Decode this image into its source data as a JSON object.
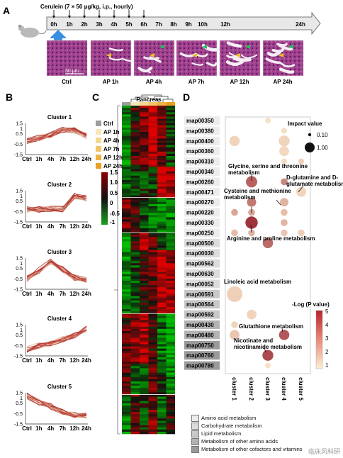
{
  "panels": {
    "a": "A",
    "b": "B",
    "c": "C",
    "d": "D"
  },
  "panel_a": {
    "treatment": "Cerulein (7 × 50 μg/kg, i.p., hourly)",
    "timepoints": [
      "0h",
      "1h",
      "2h",
      "3h",
      "4h",
      "5h",
      "6h",
      "7h",
      "8h",
      "9h",
      "10h",
      "12h",
      "24h"
    ],
    "image_labels": [
      "Ctrl",
      "AP 1h",
      "AP 4h",
      "AP 7h",
      "AP 12h",
      "AP 24h"
    ],
    "scale_bar": "50 μm"
  },
  "panel_b": {
    "x_ticks": [
      "Ctrl",
      "1h",
      "4h",
      "7h",
      "12h",
      "24h"
    ],
    "y_ticks": [
      "1.5",
      "1",
      "0.5",
      "-0.5",
      "-1.5"
    ],
    "clusters": [
      {
        "title": "Cluster 1",
        "profile": [
          -0.2,
          0.1,
          0.4,
          0.9,
          0.8,
          0.3
        ]
      },
      {
        "title": "Cluster 2",
        "profile": [
          -0.3,
          -0.3,
          -0.2,
          -0.3,
          1.0,
          0.8
        ]
      },
      {
        "title": "Cluster 3",
        "profile": [
          -0.5,
          0.3,
          1.2,
          0.4,
          -0.4,
          -0.6
        ]
      },
      {
        "title": "Cluster 4",
        "profile": [
          -0.9,
          -0.5,
          -0.3,
          0.1,
          0.5,
          1.1
        ]
      },
      {
        "title": "Cluster 5",
        "profile": [
          1.2,
          0.6,
          0.2,
          -0.3,
          -0.6,
          -0.7
        ]
      }
    ]
  },
  "panel_c": {
    "title": "Pancreas",
    "legend_groups": [
      "Ctrl",
      "AP 1h",
      "AP 4h",
      "AP 7h",
      "AP 12h",
      "AP 24h"
    ],
    "group_colors": [
      "#9e9e9e",
      "#f8e7b8",
      "#f5d890",
      "#f2c668",
      "#efb444",
      "#eda020"
    ],
    "scale_ticks": [
      "1.5",
      "1.0",
      "0.5",
      "0",
      "-0.5",
      "-1"
    ]
  },
  "panel_d": {
    "y_labels": [
      "map00350",
      "map00380",
      "map00400",
      "map00360",
      "map00310",
      "map00340",
      "map00260",
      "map00471",
      "map00270",
      "map00220",
      "map00330",
      "map00250",
      "map00500",
      "map00030",
      "map00562",
      "map00630",
      "map00052",
      "map00591",
      "map00564",
      "map00592",
      "map00430",
      "map00480",
      "map00750",
      "map00760",
      "map00780"
    ],
    "x_labels": [
      "cluster 1",
      "cluster 2",
      "cluster 3",
      "cluster 4",
      "cluster 5"
    ],
    "impact_title": "Impact value",
    "impact_ticks": [
      "0.10",
      "1.00"
    ],
    "pvalue_title": "-Log (P value)",
    "pvalue_ticks": [
      "5",
      "4",
      "3",
      "2",
      "1"
    ],
    "annotations": [
      "Glycine, serine and threonine metabolism",
      "D-glutamine and D-glutamate metabolism",
      "Cysteine and methionine metabolism",
      "Arginine and proline metabolism",
      "Linoleic acid metabolism",
      "Glutathione metabolism",
      "Nicotinate and nicotinamide metabolism"
    ],
    "points": [
      {
        "row": "map00350",
        "cluster": 3,
        "impact": 0.05,
        "logp": 1.2
      },
      {
        "row": "map00380",
        "cluster": 4,
        "impact": 0.05,
        "logp": 1.3
      },
      {
        "row": "map00400",
        "cluster": 1,
        "impact": 0.35,
        "logp": 1.5
      },
      {
        "row": "map00400",
        "cluster": 4,
        "impact": 0.4,
        "logp": 1.5
      },
      {
        "row": "map00360",
        "cluster": 4,
        "impact": 0.3,
        "logp": 1.4
      },
      {
        "row": "map00310",
        "cluster": 4,
        "impact": 0.05,
        "logp": 1.3
      },
      {
        "row": "map00310",
        "cluster": 5,
        "impact": 0.05,
        "logp": 1.6
      },
      {
        "row": "map00260",
        "cluster": 2,
        "impact": 0.45,
        "logp": 4.0
      },
      {
        "row": "map00260",
        "cluster": 4,
        "impact": 0.1,
        "logp": 3.2
      },
      {
        "row": "map00471",
        "cluster": 5,
        "impact": 0.3,
        "logp": 1.5
      },
      {
        "row": "map00270",
        "cluster": 2,
        "impact": 0.25,
        "logp": 3.5
      },
      {
        "row": "map00270",
        "cluster": 4,
        "impact": 0.2,
        "logp": 2.2
      },
      {
        "row": "map00220",
        "cluster": 1,
        "impact": 0.1,
        "logp": 2.5
      },
      {
        "row": "map00220",
        "cluster": 2,
        "impact": 0.1,
        "logp": 2.5
      },
      {
        "row": "map00220",
        "cluster": 4,
        "impact": 0.1,
        "logp": 2.0
      },
      {
        "row": "map00330",
        "cluster": 2,
        "impact": 0.55,
        "logp": 5.0
      },
      {
        "row": "map00330",
        "cluster": 4,
        "impact": 0.1,
        "logp": 2.2
      },
      {
        "row": "map00250",
        "cluster": 1,
        "impact": 0.1,
        "logp": 2.0
      },
      {
        "row": "map00250",
        "cluster": 2,
        "impact": 0.1,
        "logp": 2.2
      },
      {
        "row": "map00250",
        "cluster": 4,
        "impact": 0.1,
        "logp": 1.8
      },
      {
        "row": "map00250",
        "cluster": 5,
        "impact": 0.1,
        "logp": 1.6
      },
      {
        "row": "map00500",
        "cluster": 3,
        "impact": 0.35,
        "logp": 3.8
      },
      {
        "row": "map00591",
        "cluster": 1,
        "impact": 1.0,
        "logp": 1.6
      },
      {
        "row": "map00592",
        "cluster": 2,
        "impact": 0.3,
        "logp": 1.5
      },
      {
        "row": "map00430",
        "cluster": 1,
        "impact": 0.1,
        "logp": 1.5
      },
      {
        "row": "map00480",
        "cluster": 1,
        "impact": 0.3,
        "logp": 1.8
      },
      {
        "row": "map00480",
        "cluster": 4,
        "impact": 0.35,
        "logp": 4.2
      },
      {
        "row": "map00760",
        "cluster": 3,
        "impact": 0.4,
        "logp": 4.5
      },
      {
        "row": "map00780",
        "cluster": 3,
        "impact": 0.05,
        "logp": 1.2
      }
    ]
  },
  "legend_categories": [
    {
      "label": "Amino acid metabolism",
      "color": "#ececec"
    },
    {
      "label": "Carbohydrate metabolism",
      "color": "#dcdcdc"
    },
    {
      "label": "Lipid metabolism",
      "color": "#c8c8c8"
    },
    {
      "label": "Metabolism of other amino acids",
      "color": "#b3b3b3"
    },
    {
      "label": "Metabolism of other cofactors and vitamins",
      "color": "#9a9a9a"
    }
  ],
  "watermark": "临床风科研"
}
